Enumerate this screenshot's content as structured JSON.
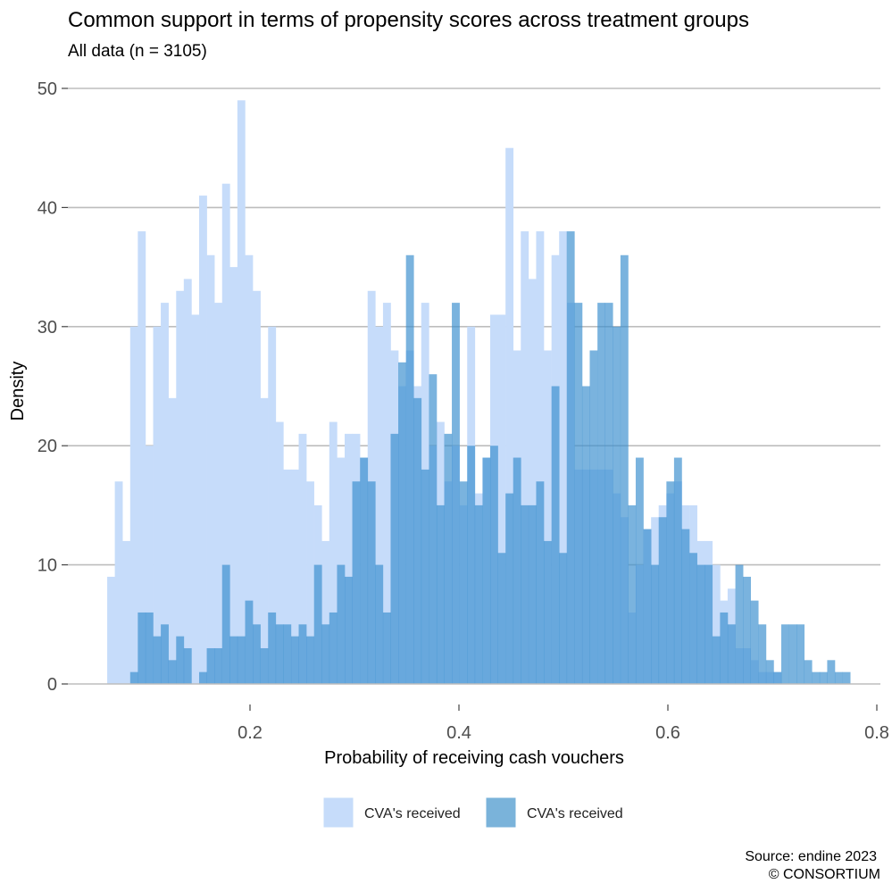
{
  "chart_data": {
    "type": "histogram",
    "title": "Common support in terms of propensity scores across treatment groups",
    "subtitle": "All data (n = 3105)",
    "xlabel": "Probability of receiving cash vouchers",
    "ylabel": "Density",
    "xlim": [
      0.0455,
      0.8
    ],
    "ylim": [
      0,
      50
    ],
    "x_ticks": [
      "0.2",
      "0.4",
      "0.6",
      "0.8"
    ],
    "y_ticks": [
      "0",
      "10",
      "20",
      "30",
      "40",
      "50"
    ],
    "bin_width": 0.00733,
    "grid": "horizontal",
    "legend_position": "bottom",
    "series": [
      {
        "name": "CVA's received",
        "color": "#c6dcfa",
        "bins": [
          [
            0.0633,
            9
          ],
          [
            0.0706,
            17
          ],
          [
            0.078,
            12
          ],
          [
            0.0853,
            30
          ],
          [
            0.0926,
            38
          ],
          [
            0.0999,
            20
          ],
          [
            0.1073,
            30
          ],
          [
            0.1146,
            32
          ],
          [
            0.1219,
            24
          ],
          [
            0.1293,
            33
          ],
          [
            0.1366,
            34
          ],
          [
            0.1439,
            31
          ],
          [
            0.1513,
            41
          ],
          [
            0.1586,
            36
          ],
          [
            0.1659,
            32
          ],
          [
            0.1733,
            42
          ],
          [
            0.1806,
            35
          ],
          [
            0.1879,
            49
          ],
          [
            0.1953,
            36
          ],
          [
            0.2026,
            33
          ],
          [
            0.2099,
            24
          ],
          [
            0.2173,
            30
          ],
          [
            0.2246,
            22
          ],
          [
            0.2319,
            18
          ],
          [
            0.2393,
            18
          ],
          [
            0.2466,
            21
          ],
          [
            0.2539,
            17
          ],
          [
            0.2613,
            15
          ],
          [
            0.2686,
            12
          ],
          [
            0.2759,
            22
          ],
          [
            0.2833,
            19
          ],
          [
            0.2906,
            21
          ],
          [
            0.2979,
            21
          ],
          [
            0.3053,
            19
          ],
          [
            0.3126,
            33
          ],
          [
            0.3199,
            30
          ],
          [
            0.3273,
            32
          ],
          [
            0.3346,
            28
          ],
          [
            0.3419,
            25
          ],
          [
            0.3493,
            28
          ],
          [
            0.3566,
            25
          ],
          [
            0.3639,
            32
          ],
          [
            0.3713,
            20
          ],
          [
            0.3786,
            22
          ],
          [
            0.3859,
            17
          ],
          [
            0.3932,
            20
          ],
          [
            0.4006,
            15
          ],
          [
            0.4079,
            30
          ],
          [
            0.4152,
            16
          ],
          [
            0.4226,
            19
          ],
          [
            0.4299,
            31
          ],
          [
            0.4372,
            31
          ],
          [
            0.4446,
            45
          ],
          [
            0.4519,
            28
          ],
          [
            0.4592,
            38
          ],
          [
            0.4666,
            34
          ],
          [
            0.4739,
            38
          ],
          [
            0.4812,
            28
          ],
          [
            0.4886,
            36
          ],
          [
            0.4959,
            38
          ],
          [
            0.5032,
            32
          ],
          [
            0.5106,
            18
          ],
          [
            0.5179,
            18
          ],
          [
            0.5252,
            18
          ],
          [
            0.5326,
            18
          ],
          [
            0.5399,
            18
          ],
          [
            0.5472,
            16
          ],
          [
            0.5546,
            14
          ],
          [
            0.5619,
            6
          ],
          [
            0.5692,
            10
          ],
          [
            0.5766,
            13
          ],
          [
            0.5839,
            14
          ],
          [
            0.5912,
            15
          ],
          [
            0.5986,
            16
          ],
          [
            0.6059,
            17
          ],
          [
            0.6132,
            15
          ],
          [
            0.6206,
            15
          ],
          [
            0.6279,
            12
          ],
          [
            0.6352,
            12
          ],
          [
            0.6426,
            10
          ],
          [
            0.6499,
            7
          ],
          [
            0.6572,
            8
          ],
          [
            0.6646,
            3
          ],
          [
            0.6719,
            3
          ],
          [
            0.6792,
            2
          ],
          [
            0.6866,
            1
          ],
          [
            0.6939,
            1
          ],
          [
            0.7012,
            1
          ]
        ]
      },
      {
        "name": "CVA's received",
        "color": "#3b8fce",
        "opacity": 0.68,
        "bins": [
          [
            0.0853,
            1
          ],
          [
            0.0926,
            6
          ],
          [
            0.0999,
            6
          ],
          [
            0.1073,
            4
          ],
          [
            0.1146,
            5
          ],
          [
            0.1219,
            2
          ],
          [
            0.1293,
            4
          ],
          [
            0.1366,
            3
          ],
          [
            0.1513,
            1
          ],
          [
            0.1586,
            3
          ],
          [
            0.1659,
            3
          ],
          [
            0.1733,
            10
          ],
          [
            0.1806,
            4
          ],
          [
            0.1879,
            4
          ],
          [
            0.1953,
            7
          ],
          [
            0.2026,
            5
          ],
          [
            0.2099,
            3
          ],
          [
            0.2173,
            6
          ],
          [
            0.2246,
            5
          ],
          [
            0.2319,
            5
          ],
          [
            0.2393,
            4
          ],
          [
            0.2466,
            5
          ],
          [
            0.2539,
            4
          ],
          [
            0.2613,
            10
          ],
          [
            0.2686,
            5
          ],
          [
            0.2759,
            6
          ],
          [
            0.2833,
            10
          ],
          [
            0.2906,
            9
          ],
          [
            0.2979,
            17
          ],
          [
            0.3053,
            19
          ],
          [
            0.3126,
            17
          ],
          [
            0.3199,
            10
          ],
          [
            0.3273,
            6
          ],
          [
            0.3346,
            21
          ],
          [
            0.3419,
            27
          ],
          [
            0.3493,
            36
          ],
          [
            0.3566,
            24
          ],
          [
            0.3639,
            18
          ],
          [
            0.3713,
            26
          ],
          [
            0.3786,
            15
          ],
          [
            0.3859,
            21
          ],
          [
            0.3932,
            32
          ],
          [
            0.4006,
            17
          ],
          [
            0.4079,
            20
          ],
          [
            0.4152,
            15
          ],
          [
            0.4226,
            19
          ],
          [
            0.4299,
            20
          ],
          [
            0.4372,
            11
          ],
          [
            0.4446,
            16
          ],
          [
            0.4519,
            19
          ],
          [
            0.4592,
            15
          ],
          [
            0.4666,
            15
          ],
          [
            0.4739,
            17
          ],
          [
            0.4812,
            12
          ],
          [
            0.4886,
            25
          ],
          [
            0.4959,
            11
          ],
          [
            0.5032,
            38
          ],
          [
            0.5106,
            32
          ],
          [
            0.5179,
            25
          ],
          [
            0.5252,
            28
          ],
          [
            0.5326,
            32
          ],
          [
            0.5399,
            32
          ],
          [
            0.5472,
            30
          ],
          [
            0.5546,
            36
          ],
          [
            0.5619,
            15
          ],
          [
            0.5692,
            19
          ],
          [
            0.5766,
            13
          ],
          [
            0.5839,
            10
          ],
          [
            0.5912,
            14
          ],
          [
            0.5986,
            17
          ],
          [
            0.6059,
            19
          ],
          [
            0.6132,
            13
          ],
          [
            0.6206,
            11
          ],
          [
            0.6279,
            10
          ],
          [
            0.6352,
            10
          ],
          [
            0.6426,
            4
          ],
          [
            0.6499,
            6
          ],
          [
            0.6572,
            5
          ],
          [
            0.6646,
            10
          ],
          [
            0.6719,
            9
          ],
          [
            0.6792,
            7
          ],
          [
            0.6866,
            5
          ],
          [
            0.6939,
            2
          ],
          [
            0.7012,
            1
          ],
          [
            0.7085,
            5
          ],
          [
            0.7159,
            5
          ],
          [
            0.7232,
            5
          ],
          [
            0.7305,
            2
          ],
          [
            0.7379,
            1
          ],
          [
            0.7452,
            1
          ],
          [
            0.7525,
            2
          ],
          [
            0.7598,
            1
          ],
          [
            0.7672,
            1
          ]
        ]
      }
    ],
    "caption_lines": [
      "Source: endine 2023",
      "© CONSORTIUM"
    ]
  }
}
